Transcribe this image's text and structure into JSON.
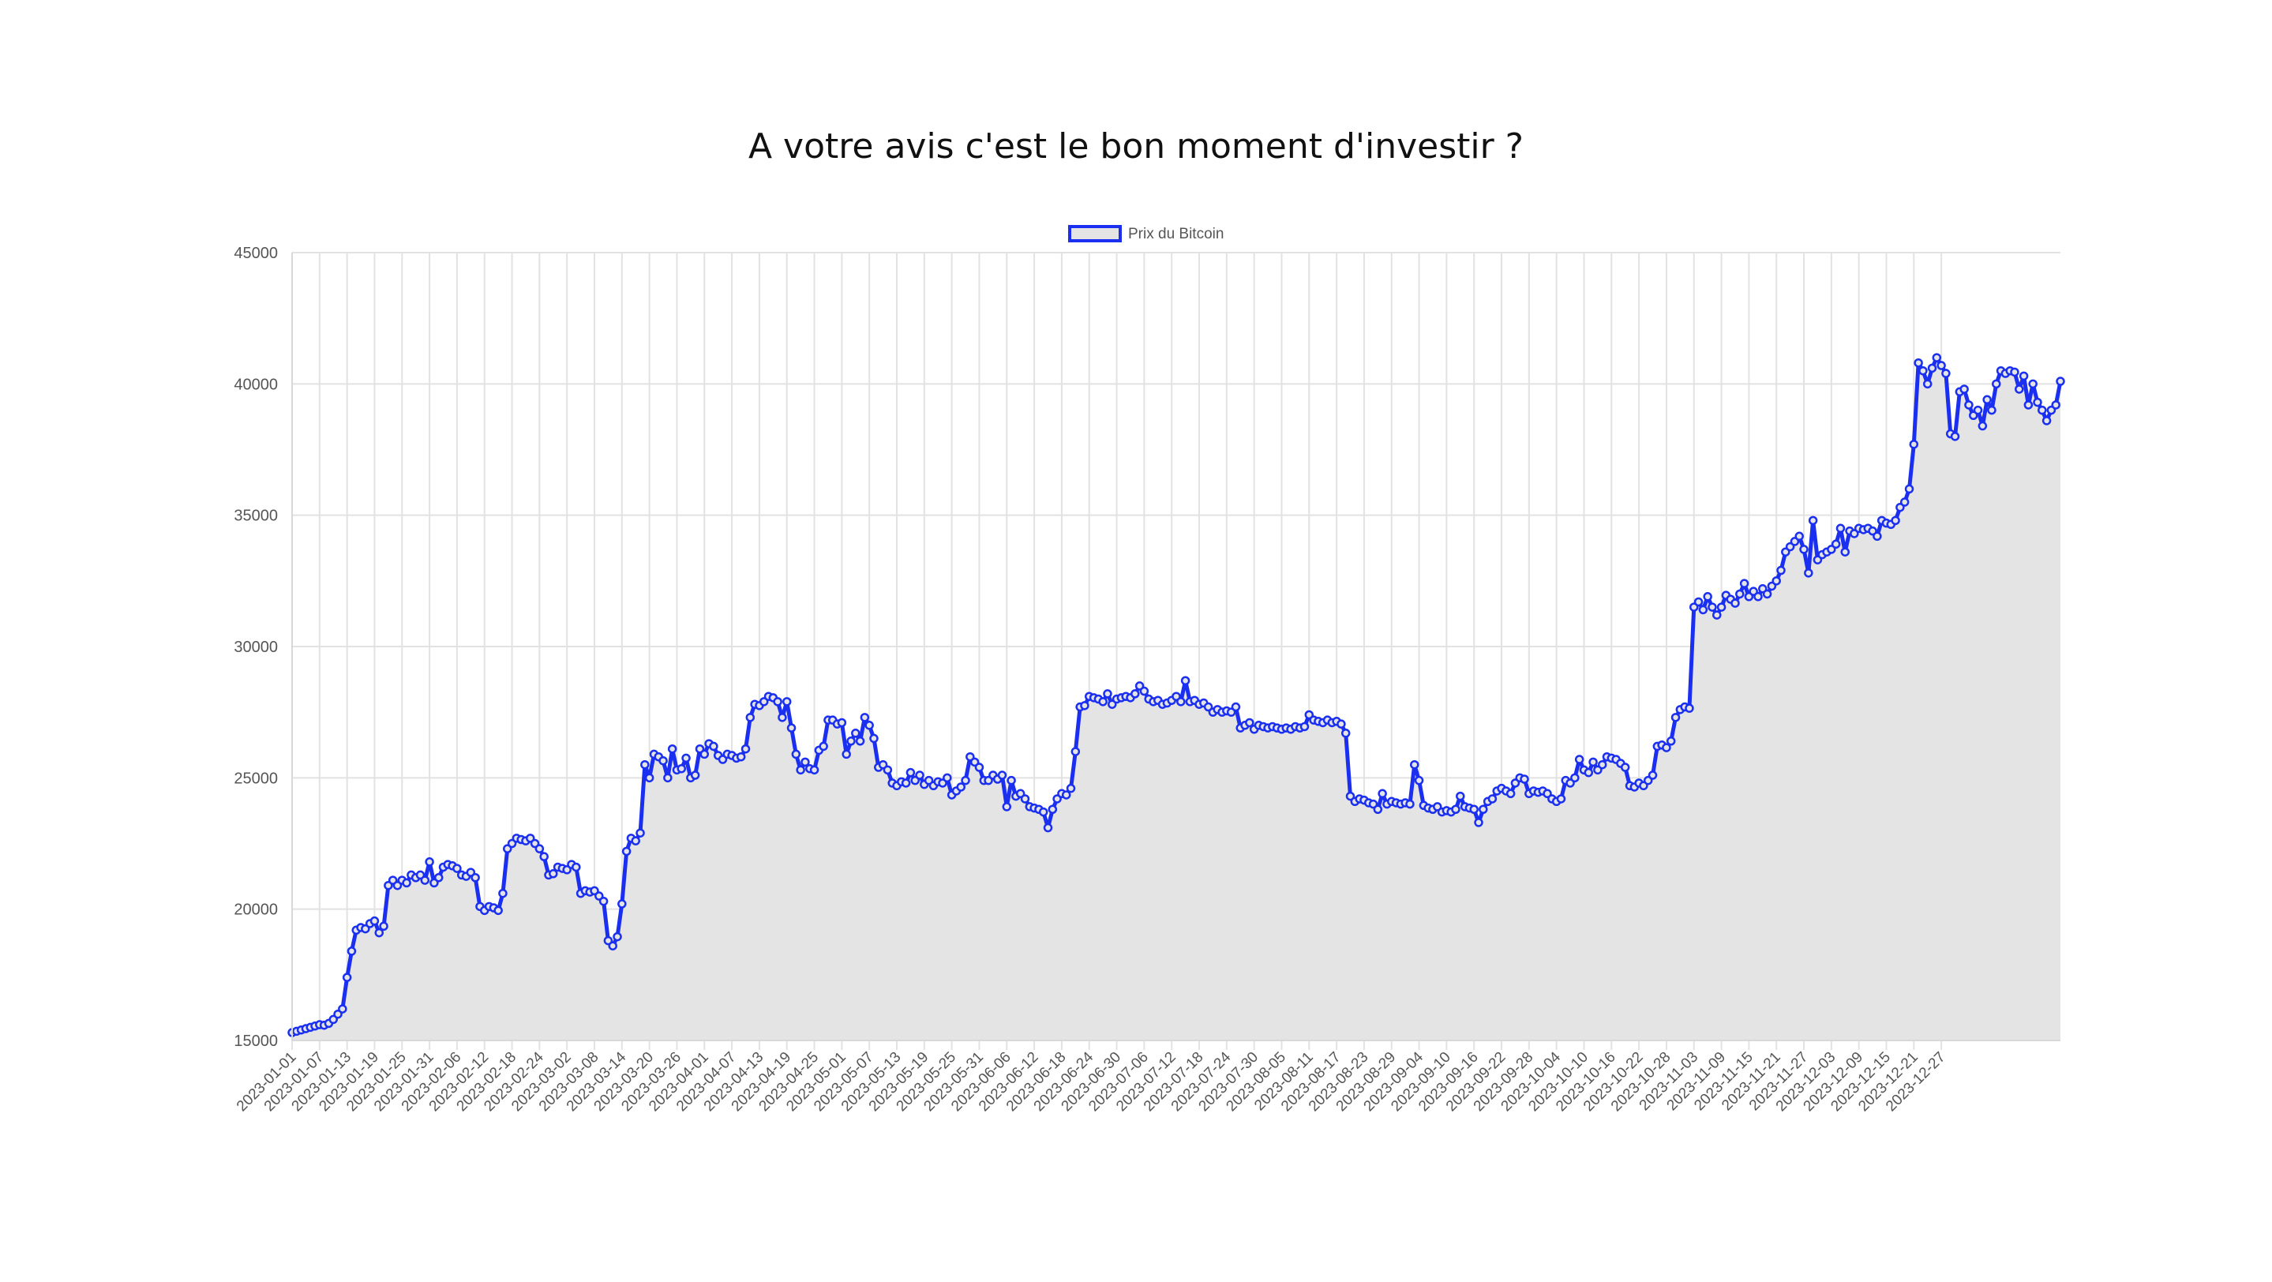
{
  "chart_data": {
    "type": "area",
    "title": "A votre avis c'est le bon moment d'investir ?",
    "xlabel": "",
    "ylabel": "",
    "ylim": [
      15000,
      45000
    ],
    "yticks": [
      15000,
      20000,
      25000,
      30000,
      35000,
      40000,
      45000
    ],
    "ytick_labels": [
      "15000",
      "20000",
      "25000",
      "30000",
      "35000",
      "40000",
      "45000"
    ],
    "grid": true,
    "legend_position": "top-center",
    "x_start": "2023-01-01",
    "x_end": "2023-12-31",
    "xtick_labels": [
      "2023-01-01",
      "2023-01-07",
      "2023-01-13",
      "2023-01-19",
      "2023-01-25",
      "2023-01-31",
      "2023-02-06",
      "2023-02-12",
      "2023-02-18",
      "2023-02-24",
      "2023-03-02",
      "2023-03-08",
      "2023-03-14",
      "2023-03-20",
      "2023-03-26",
      "2023-04-01",
      "2023-04-07",
      "2023-04-13",
      "2023-04-19",
      "2023-04-25",
      "2023-05-01",
      "2023-05-07",
      "2023-05-13",
      "2023-05-19",
      "2023-05-25",
      "2023-05-31",
      "2023-06-06",
      "2023-06-12",
      "2023-06-18",
      "2023-06-24",
      "2023-06-30",
      "2023-07-06",
      "2023-07-12",
      "2023-07-18",
      "2023-07-24",
      "2023-07-30",
      "2023-08-05",
      "2023-08-11",
      "2023-08-17",
      "2023-08-23",
      "2023-08-29",
      "2023-09-04",
      "2023-09-10",
      "2023-09-16",
      "2023-09-22",
      "2023-09-28",
      "2023-10-04",
      "2023-10-10",
      "2023-10-16",
      "2023-10-22",
      "2023-10-28",
      "2023-11-03",
      "2023-11-09",
      "2023-11-15",
      "2023-11-21",
      "2023-11-27",
      "2023-12-03",
      "2023-12-09",
      "2023-12-15",
      "2023-12-21",
      "2023-12-27"
    ],
    "series": [
      {
        "name": "Prix du Bitcoin",
        "color": "#1a2ff0",
        "fill": "#e4e4e4",
        "values": [
          15300,
          15350,
          15400,
          15450,
          15500,
          15550,
          15600,
          15580,
          15650,
          15800,
          16000,
          16200,
          17400,
          18400,
          19200,
          19300,
          19250,
          19450,
          19550,
          19100,
          19350,
          20900,
          21100,
          20900,
          21100,
          21000,
          21300,
          21200,
          21300,
          21100,
          21800,
          21000,
          21200,
          21600,
          21700,
          21650,
          21550,
          21300,
          21250,
          21400,
          21200,
          20100,
          19950,
          20100,
          20050,
          19950,
          20600,
          22300,
          22500,
          22700,
          22650,
          22600,
          22700,
          22500,
          22300,
          22000,
          21300,
          21350,
          21600,
          21550,
          21500,
          21700,
          21600,
          20600,
          20700,
          20650,
          20700,
          20500,
          20300,
          18800,
          18600,
          18950,
          20200,
          22200,
          22700,
          22600,
          22900,
          25500,
          25000,
          25900,
          25800,
          25650,
          25000,
          26100,
          25300,
          25350,
          25750,
          25000,
          25100,
          26100,
          25900,
          26300,
          26200,
          25850,
          25700,
          25900,
          25850,
          25750,
          25800,
          26100,
          27300,
          27800,
          27750,
          27900,
          28100,
          28050,
          27900,
          27300,
          27900,
          26900,
          25900,
          25300,
          25600,
          25350,
          25300,
          26050,
          26200,
          27200,
          27200,
          27050,
          27100,
          25900,
          26400,
          26700,
          26400,
          27300,
          27000,
          26500,
          25400,
          25500,
          25300,
          24800,
          24700,
          24850,
          24800,
          25200,
          24900,
          25100,
          24750,
          24900,
          24700,
          24850,
          24800,
          25000,
          24350,
          24500,
          24650,
          24900,
          25800,
          25600,
          25400,
          24900,
          24900,
          25100,
          24950,
          25100,
          23900,
          24900,
          24300,
          24400,
          24200,
          23900,
          23850,
          23800,
          23700,
          23100,
          23800,
          24200,
          24400,
          24350,
          24600,
          26000,
          27700,
          27750,
          28100,
          28050,
          28000,
          27900,
          28200,
          27800,
          28000,
          28050,
          28100,
          28050,
          28200,
          28500,
          28300,
          28000,
          27900,
          27950,
          27800,
          27850,
          27950,
          28100,
          27900,
          28700,
          27900,
          27950,
          27800,
          27850,
          27700,
          27500,
          27600,
          27500,
          27550,
          27500,
          27700,
          26900,
          27000,
          27100,
          26850,
          27000,
          26950,
          26900,
          26950,
          26900,
          26850,
          26900,
          26850,
          26950,
          26900,
          26950,
          27400,
          27200,
          27150,
          27100,
          27200,
          27100,
          27150,
          27050,
          26700,
          24300,
          24100,
          24200,
          24150,
          24050,
          24000,
          23800,
          24400,
          24000,
          24100,
          24050,
          24000,
          24050,
          24000,
          25500,
          24900,
          23950,
          23850,
          23800,
          23900,
          23700,
          23750,
          23700,
          23800,
          24300,
          23900,
          23850,
          23800,
          23300,
          23800,
          24100,
          24200,
          24500,
          24600,
          24500,
          24400,
          24800,
          25000,
          24950,
          24400,
          24500,
          24450,
          24500,
          24400,
          24200,
          24100,
          24200,
          24900,
          24800,
          25000,
          25700,
          25300,
          25200,
          25600,
          25300,
          25500,
          25800,
          25750,
          25700,
          25550,
          25400,
          24700,
          24650,
          24800,
          24700,
          24900,
          25100,
          26200,
          26250,
          26150,
          26400,
          27300,
          27600,
          27700,
          27650,
          31500,
          31700,
          31400,
          31900,
          31500,
          31200,
          31500,
          31950,
          31800,
          31650,
          32000,
          32400,
          31900,
          32100,
          31900,
          32200,
          32000,
          32300,
          32500,
          32900,
          33600,
          33800,
          34000,
          34200,
          33700,
          32800,
          34800,
          33300,
          33500,
          33600,
          33700,
          33900,
          34500,
          33600,
          34400,
          34300,
          34500,
          34450,
          34500,
          34400,
          34200,
          34800,
          34700,
          34650,
          34800,
          35300,
          35500,
          36000,
          37700,
          40800,
          40500,
          40000,
          40600,
          41000,
          40700,
          40400,
          38100,
          38000,
          39700,
          39800,
          39200,
          38800,
          39000,
          38400,
          39400,
          39000,
          40000,
          40500,
          40400,
          40500,
          40450,
          39800,
          40300,
          39200,
          40000,
          39300,
          39000,
          38600,
          39000,
          39200,
          40100
        ]
      }
    ]
  }
}
